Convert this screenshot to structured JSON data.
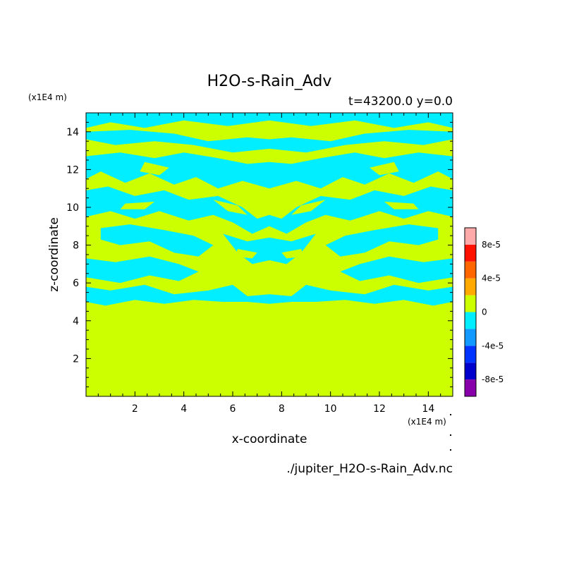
{
  "chart_data": {
    "type": "heatmap",
    "title": "H2O-s-Rain_Adv",
    "subtitle": "t=43200.0 y=0.0",
    "xlabel": "x-coordinate",
    "ylabel": "z-coordinate",
    "x_unit": "(x1E4 m)",
    "y_unit": "(x1E4 m)",
    "xlim": [
      0,
      15
    ],
    "ylim": [
      0,
      15
    ],
    "x_ticks": [
      "2",
      "4",
      "6",
      "8",
      "10",
      "12",
      "14"
    ],
    "x_tick_values": [
      2,
      4,
      6,
      8,
      10,
      12,
      14
    ],
    "y_ticks": [
      "2",
      "4",
      "6",
      "8",
      "10",
      "12",
      "14"
    ],
    "y_tick_values": [
      2,
      4,
      6,
      8,
      10,
      12,
      14
    ],
    "filename": "./jupiter_H2O-s-Rain_Adv.nc",
    "field_pattern": "mirror-symmetric about x = 7.5; positive (yellow-green, 0 to 2e-5) below z ≈ 4.5, alternating negative (cyan, -2e-5 to 0) and positive bands between z ≈ 4.5 and 15",
    "colorbar": {
      "levels": [
        -0.0001,
        -8e-05,
        -6e-05,
        -4e-05,
        -2e-05,
        0,
        2e-05,
        4e-05,
        6e-05,
        8e-05,
        0.0001
      ],
      "colors": [
        "#8800aa",
        "#0000cc",
        "#0033ff",
        "#1199ff",
        "#00eeff",
        "#ccff00",
        "#ffaa00",
        "#ff6600",
        "#ff1100",
        "#ffaaaa"
      ],
      "labels": [
        {
          "text": "8e-5",
          "value": 8e-05
        },
        {
          "text": "4e-5",
          "value": 4e-05
        },
        {
          "text": "0",
          "value": 0
        },
        {
          "text": "-4e-5",
          "value": -4e-05
        },
        {
          "text": "-8e-5",
          "value": -8e-05
        }
      ]
    },
    "colors": {
      "positive": "#ccff00",
      "negative": "#00eeff"
    }
  }
}
